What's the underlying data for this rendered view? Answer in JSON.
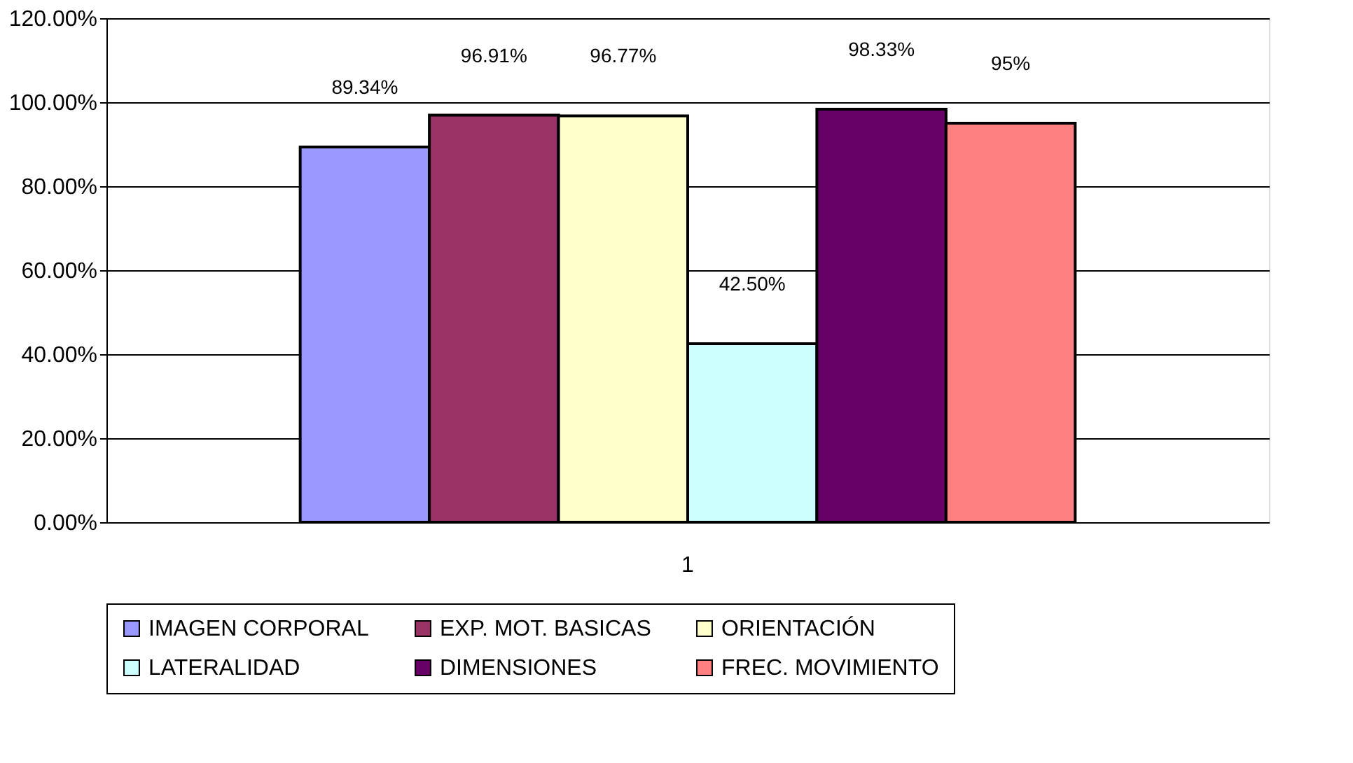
{
  "chart_data": {
    "type": "bar",
    "categories": [
      "1"
    ],
    "series": [
      {
        "name": "IMAGEN CORPORAL",
        "color": "#9999ff",
        "values": [
          89.34
        ],
        "value_labels": [
          "89.34%"
        ]
      },
      {
        "name": "EXP. MOT. BASICAS",
        "color": "#993366",
        "values": [
          96.91
        ],
        "value_labels": [
          "96.91%"
        ]
      },
      {
        "name": "ORIENTACIÓN",
        "color": "#ffffcc",
        "values": [
          96.77
        ],
        "value_labels": [
          "96.77%"
        ]
      },
      {
        "name": "LATERALIDAD",
        "color": "#ccffff",
        "values": [
          42.5
        ],
        "value_labels": [
          "42.50%"
        ]
      },
      {
        "name": "DIMENSIONES",
        "color": "#660066",
        "values": [
          98.33
        ],
        "value_labels": [
          "98.33%"
        ]
      },
      {
        "name": "FREC. MOVIMIENTO",
        "color": "#ff8080",
        "values": [
          95
        ],
        "value_labels": [
          "95%"
        ]
      }
    ],
    "ylim": [
      0,
      120
    ],
    "yticks": [
      {
        "value": 0,
        "label": "0.00%"
      },
      {
        "value": 20,
        "label": "20.00%"
      },
      {
        "value": 40,
        "label": "40.00%"
      },
      {
        "value": 60,
        "label": "60.00%"
      },
      {
        "value": 80,
        "label": "80.00%"
      },
      {
        "value": 100,
        "label": "100.00%"
      },
      {
        "value": 120,
        "label": "120.00%"
      }
    ],
    "grid": "y",
    "legend": "bottom"
  }
}
